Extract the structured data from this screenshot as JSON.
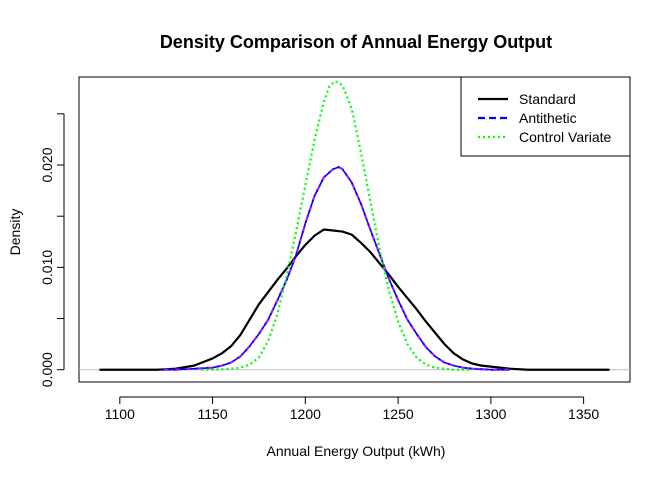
{
  "chart_data": {
    "type": "line",
    "title": "Density Comparison of Annual Energy Output",
    "xlabel": "Annual Energy Output (kWh)",
    "ylabel": "Density",
    "xlim": [
      1078,
      1375
    ],
    "ylim": [
      -0.0012,
      0.0286
    ],
    "x_ticks": [
      1100,
      1150,
      1200,
      1250,
      1300,
      1350
    ],
    "x_tick_labels": [
      "1100",
      "1150",
      "1200",
      "1250",
      "1300",
      "1350"
    ],
    "y_ticks": [
      0.0,
      0.005,
      0.01,
      0.015,
      0.02,
      0.025
    ],
    "y_tick_labels": [
      "0.000",
      "",
      "0.010",
      "",
      "0.020",
      ""
    ],
    "baseline": {
      "y": 0,
      "color": "#bebebe"
    },
    "grid": false,
    "legend": {
      "placement": "top-right"
    },
    "series": [
      {
        "name": "Standard",
        "color": "#000000",
        "dash": "solid",
        "x": [
          1089,
          1100,
          1110,
          1120,
          1130,
          1140,
          1150,
          1155,
          1160,
          1165,
          1170,
          1175,
          1180,
          1185,
          1190,
          1195,
          1200,
          1205,
          1210,
          1215,
          1220,
          1225,
          1230,
          1235,
          1240,
          1245,
          1250,
          1255,
          1260,
          1265,
          1270,
          1275,
          1280,
          1285,
          1290,
          1295,
          1300,
          1310,
          1320,
          1330,
          1340,
          1350,
          1364
        ],
        "y": [
          0.0,
          0.0,
          0.0,
          0.0,
          0.0001,
          0.0004,
          0.0011,
          0.0016,
          0.0023,
          0.0034,
          0.0049,
          0.0064,
          0.0076,
          0.0088,
          0.0099,
          0.0111,
          0.0122,
          0.0131,
          0.0137,
          0.0136,
          0.0135,
          0.0132,
          0.0124,
          0.0115,
          0.0104,
          0.0093,
          0.0081,
          0.007,
          0.0059,
          0.0047,
          0.0036,
          0.0025,
          0.0016,
          0.001,
          0.0006,
          0.0004,
          0.0003,
          0.0001,
          0.0,
          0.0,
          0.0,
          0.0,
          0.0
        ]
      },
      {
        "name": "Antithetic",
        "color": "#0000ff",
        "dash": "dashed",
        "x": [
          1123,
          1130,
          1140,
          1150,
          1155,
          1160,
          1165,
          1170,
          1175,
          1180,
          1185,
          1190,
          1195,
          1200,
          1205,
          1210,
          1215,
          1218,
          1220,
          1225,
          1230,
          1235,
          1240,
          1245,
          1250,
          1255,
          1260,
          1265,
          1270,
          1275,
          1280,
          1285,
          1290,
          1300,
          1310
        ],
        "y": [
          0.0,
          0.0,
          0.0001,
          0.0002,
          0.0004,
          0.0007,
          0.0013,
          0.0023,
          0.0035,
          0.0049,
          0.0068,
          0.0088,
          0.0112,
          0.0143,
          0.017,
          0.0188,
          0.0196,
          0.0198,
          0.0196,
          0.0183,
          0.0162,
          0.0137,
          0.0113,
          0.0089,
          0.0068,
          0.0049,
          0.0035,
          0.0022,
          0.0013,
          0.0007,
          0.0004,
          0.0002,
          0.0001,
          0.0,
          0.0
        ],
        "color_overlay": "#a020f0"
      },
      {
        "name": "Control Variate",
        "color": "#00ff00",
        "dash": "dotted",
        "x": [
          1144,
          1150,
          1160,
          1165,
          1170,
          1175,
          1180,
          1185,
          1190,
          1195,
          1200,
          1205,
          1210,
          1213,
          1216,
          1220,
          1225,
          1230,
          1235,
          1240,
          1245,
          1250,
          1255,
          1260,
          1265,
          1270,
          1275,
          1280,
          1285,
          1290
        ],
        "y": [
          0.0,
          0.0,
          0.0001,
          0.0002,
          0.0005,
          0.0012,
          0.0028,
          0.0055,
          0.0092,
          0.0135,
          0.018,
          0.0225,
          0.0262,
          0.0277,
          0.0282,
          0.0278,
          0.0255,
          0.0212,
          0.0165,
          0.0118,
          0.0078,
          0.0047,
          0.0025,
          0.0012,
          0.0005,
          0.0002,
          0.0001,
          0.0,
          0.0,
          0.0
        ]
      }
    ]
  }
}
